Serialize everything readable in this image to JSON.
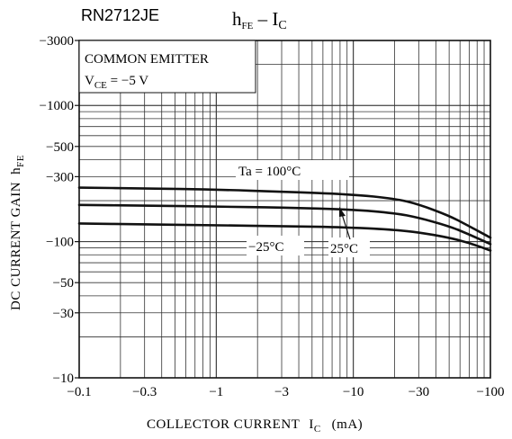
{
  "part_number": "RN2712JE",
  "chart_data": {
    "type": "line",
    "title": {
      "main": "h",
      "main_sub": "FE",
      "sep": " – ",
      "x": "I",
      "x_sub": "C"
    },
    "xlabel": {
      "text": "COLLECTOR CURRENT",
      "sym": "I",
      "sym_sub": "C",
      "unit": "(mA)"
    },
    "ylabel": {
      "text": "DC CURRENT GAIN",
      "sym": "h",
      "sym_sub": "FE"
    },
    "xscale": "log",
    "yscale": "log",
    "xlim": [
      -0.1,
      -100
    ],
    "ylim": [
      -10,
      -3000
    ],
    "x_ticks": [
      {
        "value": -0.1,
        "label": "−0.1"
      },
      {
        "value": -0.3,
        "label": "−0.3"
      },
      {
        "value": -1,
        "label": "−1"
      },
      {
        "value": -3,
        "label": "−3"
      },
      {
        "value": -10,
        "label": "−10"
      },
      {
        "value": -30,
        "label": "−30"
      },
      {
        "value": -100,
        "label": "−100"
      }
    ],
    "y_ticks": [
      {
        "value": -3000,
        "label": "−3000"
      },
      {
        "value": -1000,
        "label": "−1000"
      },
      {
        "value": -500,
        "label": "−500"
      },
      {
        "value": -300,
        "label": "−300"
      },
      {
        "value": -100,
        "label": "−100"
      },
      {
        "value": -50,
        "label": "−50"
      },
      {
        "value": -30,
        "label": "−30"
      },
      {
        "value": -10,
        "label": "−10"
      }
    ],
    "grid": true,
    "condition": {
      "line1": "COMMON EMITTER",
      "line2_sym": "V",
      "line2_sub": "CE",
      "line2_val": " = −5 V"
    },
    "series": [
      {
        "name": "Ta = 100°C",
        "x": [
          -0.1,
          -0.3,
          -1,
          -3,
          -10,
          -20,
          -30,
          -50,
          -70,
          -100
        ],
        "y": [
          -249,
          -246,
          -241,
          -233,
          -222,
          -207,
          -188,
          -155,
          -130,
          -107
        ]
      },
      {
        "name": "25°C",
        "x": [
          -0.1,
          -0.3,
          -1,
          -3,
          -10,
          -20,
          -30,
          -50,
          -70,
          -100
        ],
        "y": [
          -186,
          -184,
          -181,
          -178,
          -172,
          -162,
          -150,
          -130,
          -113,
          -96
        ]
      },
      {
        "name": "−25°C",
        "x": [
          -0.1,
          -0.3,
          -1,
          -3,
          -10,
          -20,
          -30,
          -50,
          -70,
          -100
        ],
        "y": [
          -136,
          -134,
          -132,
          -130,
          -127,
          -122,
          -117,
          -107,
          -98,
          -86
        ]
      }
    ]
  }
}
